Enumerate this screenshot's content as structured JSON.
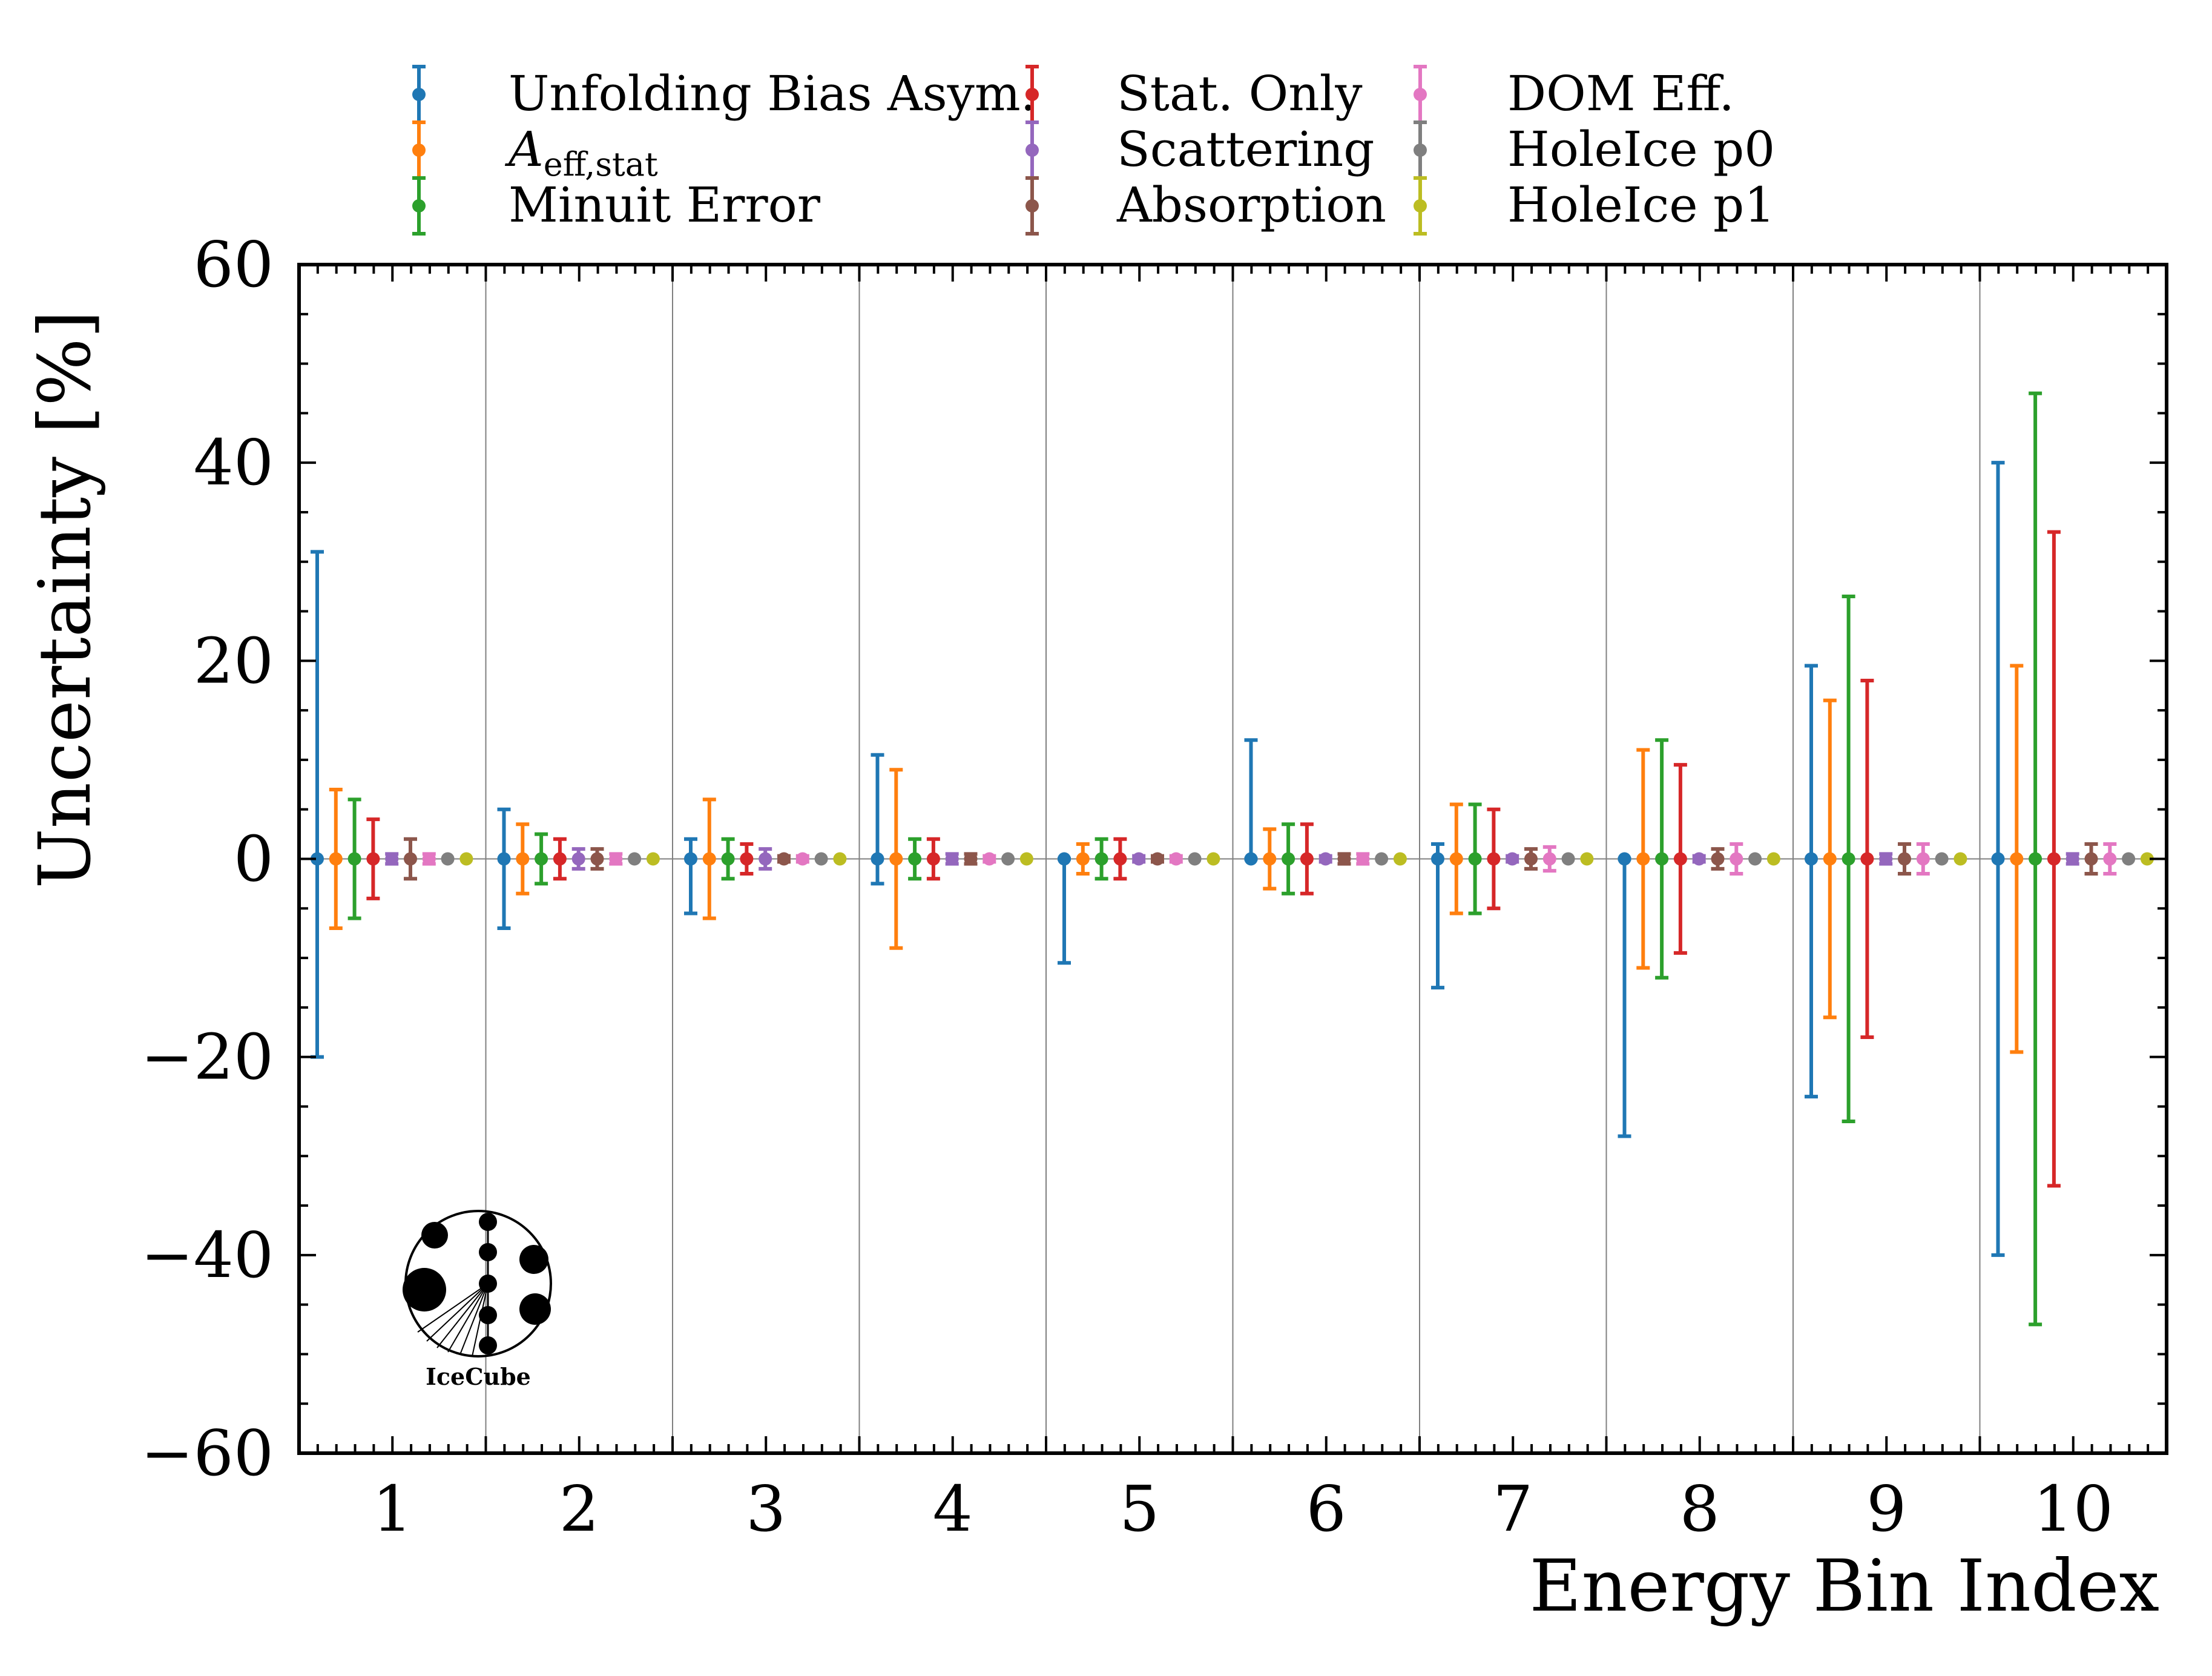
{
  "chart_data": {
    "type": "errorbar",
    "xlabel": "Energy Bin Index",
    "ylabel": "Uncertainty [%]",
    "ylim": [
      -60,
      60
    ],
    "yticks": [
      -60,
      -40,
      -20,
      0,
      20,
      40,
      60
    ],
    "ytick_labels": [
      "−60",
      "−40",
      "−20",
      "0",
      "20",
      "40",
      "60"
    ],
    "categories": [
      "1",
      "2",
      "3",
      "4",
      "5",
      "6",
      "7",
      "8",
      "9",
      "10"
    ],
    "legend_position": "top",
    "logo_text": "IceCube",
    "series": [
      {
        "name": "Unfolding Bias Asym.",
        "color": "#1f77b4",
        "lower": [
          -20,
          -7,
          -5.5,
          -2.5,
          -10.5,
          0,
          -13,
          -28,
          -24,
          -40
        ],
        "upper": [
          31,
          5,
          2,
          10.5,
          0,
          12,
          1.5,
          0,
          19.5,
          40
        ]
      },
      {
        "name": "A_eff,stat",
        "label_main": "A",
        "label_sub": "eff,stat",
        "color": "#ff7f0e",
        "lower": [
          -7,
          -3.5,
          -6,
          -9,
          -1.5,
          -3,
          -5.5,
          -11,
          -16,
          -19.5
        ],
        "upper": [
          7,
          3.5,
          6,
          9,
          1.5,
          3,
          5.5,
          11,
          16,
          19.5
        ]
      },
      {
        "name": "Minuit Error",
        "color": "#2ca02c",
        "lower": [
          -6,
          -2.5,
          -2,
          -2,
          -2,
          -3.5,
          -5.5,
          -12,
          -26.5,
          -47
        ],
        "upper": [
          6,
          2.5,
          2,
          2,
          2,
          3.5,
          5.5,
          12,
          26.5,
          47
        ]
      },
      {
        "name": "Stat. Only",
        "color": "#d62728",
        "lower": [
          -4,
          -2,
          -1.5,
          -2,
          -2,
          -3.5,
          -5,
          -9.5,
          -18,
          -33
        ],
        "upper": [
          4,
          2,
          1.5,
          2,
          2,
          3.5,
          5,
          9.5,
          18,
          33
        ]
      },
      {
        "name": "Scattering",
        "color": "#9467bd",
        "lower": [
          -0.5,
          -1,
          -1,
          -0.5,
          -0.3,
          -0.3,
          -0.3,
          -0.3,
          -0.5,
          -0.5
        ],
        "upper": [
          0.5,
          1,
          1,
          0.5,
          0.3,
          0.3,
          0.3,
          0.3,
          0.5,
          0.5
        ]
      },
      {
        "name": "Absorption",
        "color": "#8c564b",
        "lower": [
          -2,
          -1,
          -0.3,
          -0.5,
          -0.3,
          -0.5,
          -1,
          -1,
          -1.5,
          -1.5
        ],
        "upper": [
          2,
          1,
          0.3,
          0.5,
          0.3,
          0.5,
          1,
          1,
          1.5,
          1.5
        ]
      },
      {
        "name": "DOM Eff.",
        "color": "#e377c2",
        "lower": [
          -0.5,
          -0.5,
          -0.3,
          -0.3,
          -0.3,
          -0.5,
          -1.2,
          -1.5,
          -1.5,
          -1.5
        ],
        "upper": [
          0.5,
          0.5,
          0.3,
          0.3,
          0.3,
          0.5,
          1.2,
          1.5,
          1.5,
          1.5
        ]
      },
      {
        "name": "HoleIce p0",
        "color": "#7f7f7f",
        "lower": [
          0,
          0,
          0,
          0,
          0,
          0,
          0,
          0,
          0,
          0
        ],
        "upper": [
          0,
          0,
          0,
          0,
          0,
          0,
          0,
          0,
          0,
          0
        ]
      },
      {
        "name": "HoleIce p1",
        "color": "#bcbd22",
        "lower": [
          0,
          0,
          0,
          0,
          0,
          0,
          0,
          0,
          0,
          0
        ],
        "upper": [
          0,
          0,
          0,
          0,
          0,
          0,
          0,
          0,
          0,
          0
        ]
      }
    ]
  }
}
